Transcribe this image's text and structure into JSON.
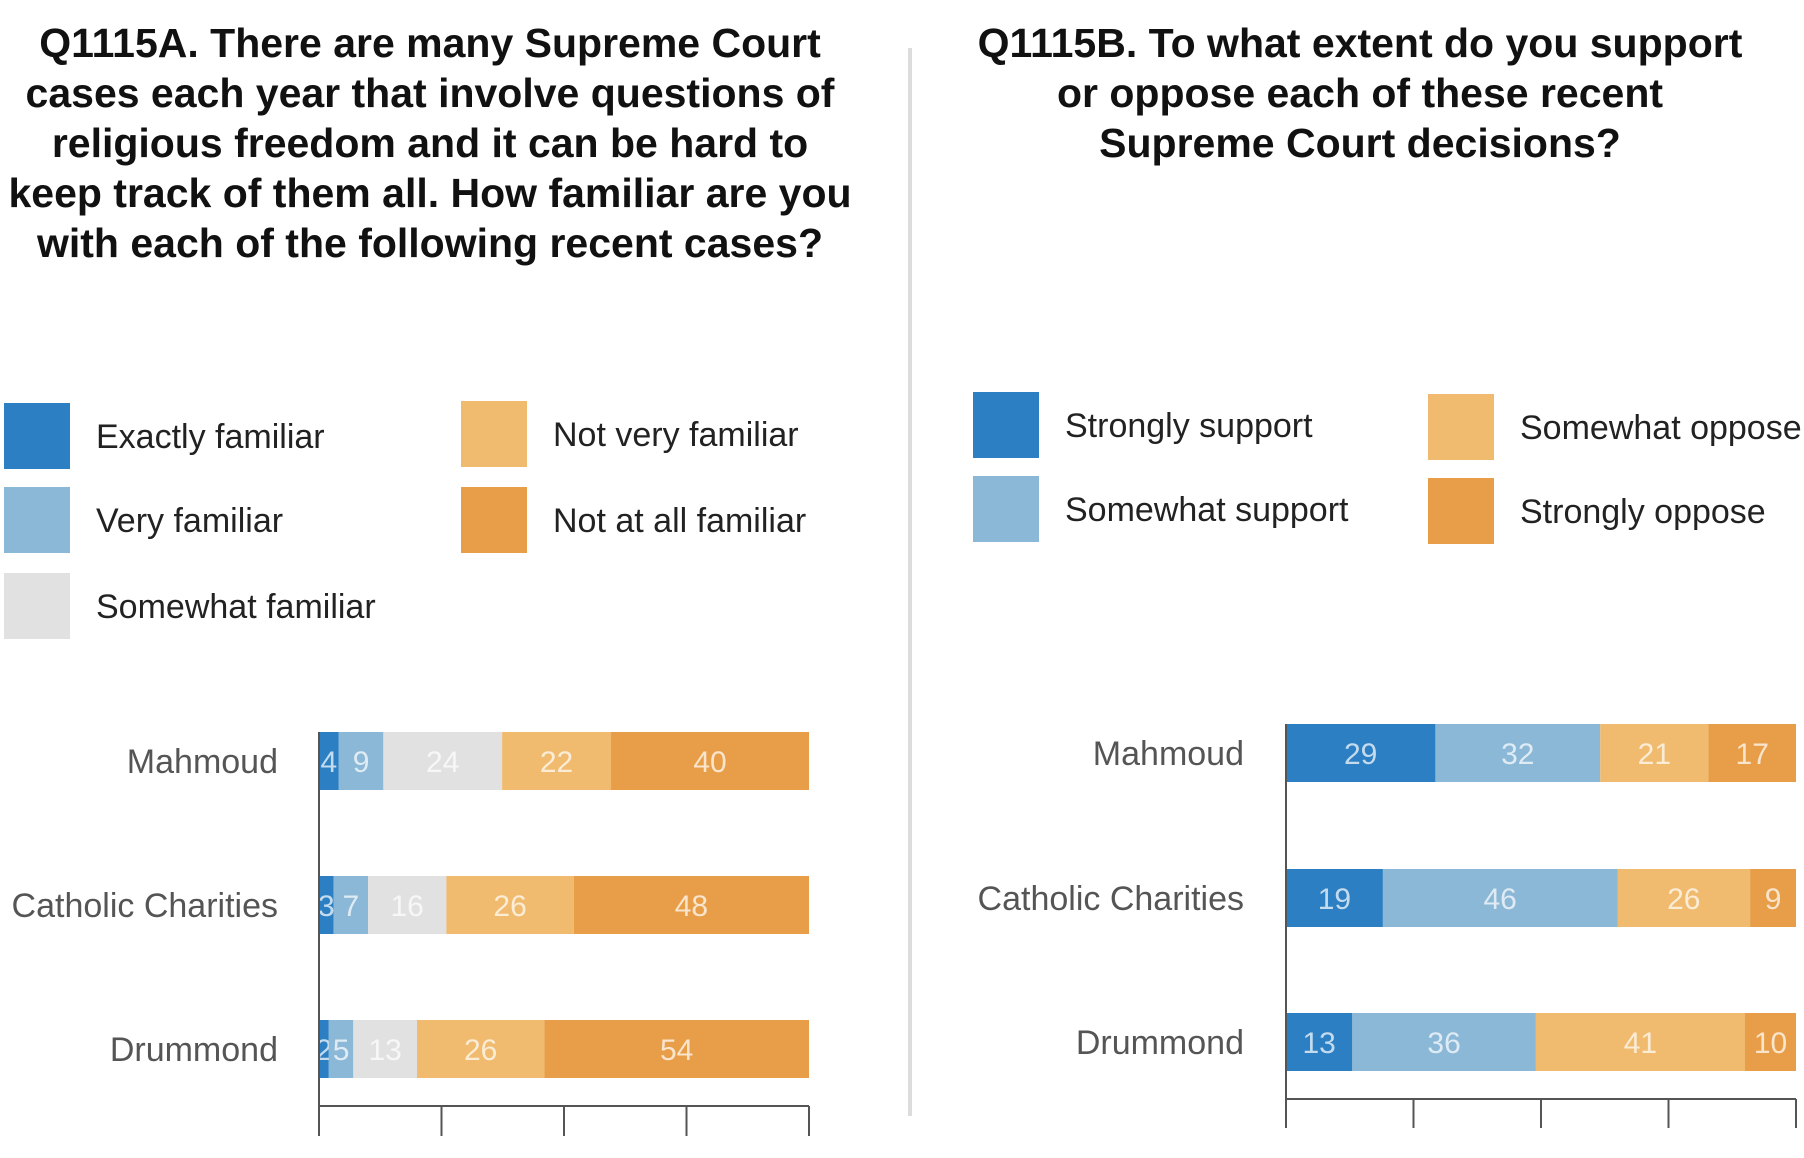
{
  "panels": {
    "left": {
      "title": "Q1115A. There are many Supreme Court\ncases each year that involve questions of\nreligious freedom and it can be hard to\nkeep track of them all. How familiar are you\nwith each of the following recent cases?"
    },
    "right": {
      "title": "Q1115B. To what extent do you support\nor oppose each of these recent\nSupreme Court decisions?"
    }
  },
  "chart_data": [
    {
      "type": "bar",
      "orientation": "horizontal",
      "stacked": true,
      "categories": [
        "Mahmoud",
        "Catholic Charities",
        "Drummond"
      ],
      "series": [
        {
          "name": "Exactly familiar",
          "color": "#2b7fc2",
          "values": [
            4,
            3,
            2
          ]
        },
        {
          "name": "Very familiar",
          "color": "#8bb8d6",
          "values": [
            9,
            7,
            5
          ]
        },
        {
          "name": "Somewhat familiar",
          "color": "#e0e1e0",
          "values": [
            24,
            16,
            13
          ]
        },
        {
          "name": "Not very familiar",
          "color": "#f0bb6e",
          "values": [
            22,
            26,
            26
          ]
        },
        {
          "name": "Not at all familiar",
          "color": "#e89e48",
          "values": [
            40,
            48,
            54
          ]
        }
      ],
      "xlim": [
        0,
        100
      ],
      "legend_position": "top"
    },
    {
      "type": "bar",
      "orientation": "horizontal",
      "stacked": true,
      "categories": [
        "Mahmoud",
        "Catholic Charities",
        "Drummond"
      ],
      "series": [
        {
          "name": "Strongly support",
          "color": "#2b7fc2",
          "values": [
            29,
            19,
            13
          ]
        },
        {
          "name": "Somewhat support",
          "color": "#8bb8d6",
          "values": [
            32,
            46,
            36
          ]
        },
        {
          "name": "Somewhat oppose",
          "color": "#f0bb6e",
          "values": [
            21,
            26,
            41
          ]
        },
        {
          "name": "Strongly oppose",
          "color": "#e89e48",
          "values": [
            17,
            9,
            10
          ]
        }
      ],
      "xlim": [
        0,
        100
      ],
      "legend_position": "top"
    }
  ]
}
